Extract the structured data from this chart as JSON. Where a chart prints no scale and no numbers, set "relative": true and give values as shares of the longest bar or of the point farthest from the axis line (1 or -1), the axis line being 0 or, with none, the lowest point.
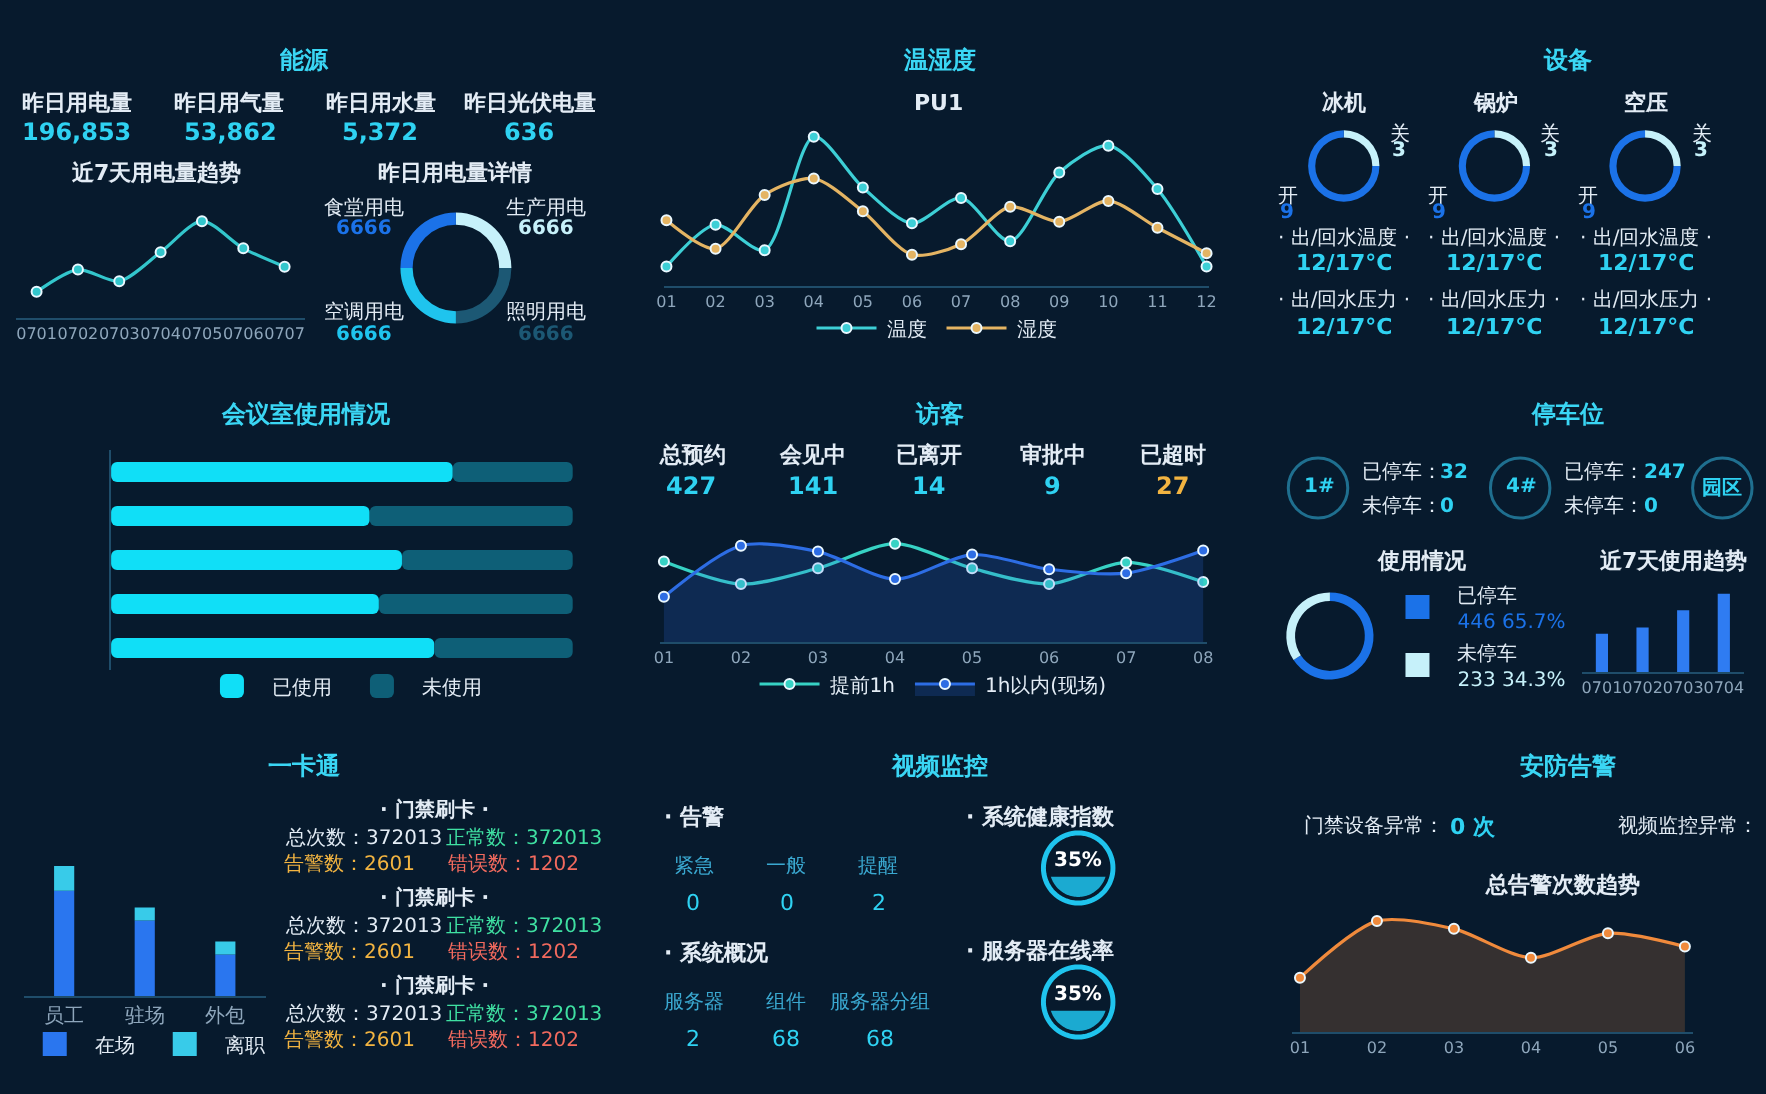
{
  "chart_data": [
    {
      "type": "other",
      "title": "能源",
      "annotations": [
        "昨日用电量",
        "196,853",
        "昨日用气量",
        "53,862",
        "昨日用水量",
        "5,372",
        "昨日光伏电量",
        "636"
      ]
    },
    {
      "type": "line",
      "title": "近7天用电量趋势",
      "categories": [
        "0701",
        "0702",
        "0703",
        "0704",
        "0705",
        "0706",
        "0707"
      ],
      "values": [
        0.27,
        0.5,
        0.38,
        0.68,
        1,
        0.72,
        0.53
      ],
      "color": "#33c6cc",
      "relative": true,
      "marker": "circle"
    },
    {
      "type": "donut",
      "title": "昨日用电量详情",
      "categories": [
        "生产用电",
        "照明用电",
        "空调用电",
        "食堂用电"
      ],
      "values": [
        6666,
        6666,
        6666,
        6666
      ],
      "colors": [
        "#c6f1fa",
        "#1c5874",
        "#1fc4ee",
        "#1b72e8"
      ],
      "data_labels": true
    },
    {
      "type": "line",
      "title": "温湿度",
      "subtitle": "PU1",
      "categories": [
        "01",
        "02",
        "03",
        "04",
        "05",
        "06",
        "07",
        "08",
        "09",
        "10",
        "11",
        "12"
      ],
      "series": [
        {
          "name": "温度",
          "color": "#3dcfd6",
          "values": [
            0.13,
            0.41,
            0.24,
            1,
            0.66,
            0.42,
            0.59,
            0.3,
            0.76,
            0.94,
            0.65,
            0.13
          ]
        },
        {
          "name": "湿度",
          "color": "#e4b463",
          "values": [
            0.44,
            0.25,
            0.61,
            0.72,
            0.5,
            0.21,
            0.28,
            0.53,
            0.43,
            0.57,
            0.39,
            0.22
          ]
        }
      ],
      "relative": true,
      "marker": "circle",
      "legend": "bottom"
    },
    {
      "type": "donut",
      "title": "设备",
      "subtitle": "冰机",
      "categories": [
        "关",
        "开"
      ],
      "values": [
        3,
        9
      ],
      "colors": [
        "#c6f1fa",
        "#1b72e8"
      ],
      "data_labels": true,
      "annotations": [
        "· 出/回水温度 ·",
        "12/17°C",
        "· 出/回水压力 ·",
        "12/17°C"
      ]
    },
    {
      "type": "donut",
      "title": "锅炉",
      "categories": [
        "关",
        "开"
      ],
      "values": [
        3,
        9
      ],
      "colors": [
        "#c6f1fa",
        "#1b72e8"
      ],
      "data_labels": true,
      "annotations": [
        "· 出/回水温度 ·",
        "12/17°C",
        "· 出/回水压力 ·",
        "12/17°C"
      ]
    },
    {
      "type": "donut",
      "title": "空压",
      "categories": [
        "关",
        "开"
      ],
      "values": [
        3,
        9
      ],
      "colors": [
        "#c6f1fa",
        "#1b72e8"
      ],
      "data_labels": true,
      "annotations": [
        "· 出/回水温度 ·",
        "12/17°C",
        "· 出/回水压力 ·",
        "12/17°C"
      ]
    },
    {
      "type": "bar",
      "title": "会议室使用情况",
      "orientation": "horizontal",
      "stacked": true,
      "relative": true,
      "categories": [
        null,
        null,
        null,
        null,
        null
      ],
      "series": [
        {
          "name": "已使用",
          "color": "#10dff7",
          "values": [
            0.74,
            0.56,
            0.63,
            0.58,
            0.7
          ]
        },
        {
          "name": "未使用",
          "color": "#0e5f77",
          "values": [
            0.26,
            0.44,
            0.37,
            0.42,
            0.3
          ]
        }
      ],
      "legend": "bottom"
    },
    {
      "type": "other",
      "title": "访客",
      "annotations": [
        "总预约",
        "427",
        "会见中",
        "141",
        "已离开",
        "14",
        "审批中",
        "9",
        "已超时",
        "27"
      ]
    },
    {
      "type": "line",
      "categories": [
        "01",
        "02",
        "03",
        "04",
        "05",
        "06",
        "07",
        "08"
      ],
      "series": [
        {
          "name": "提前1h",
          "color": "#37d2c4",
          "values": [
            0.82,
            0.59,
            0.75,
            1,
            0.75,
            0.59,
            0.81,
            0.61
          ]
        },
        {
          "name": "1h以内(现场)",
          "type": "area",
          "color": "#2d6de4",
          "values": [
            0.46,
            0.98,
            0.92,
            0.64,
            0.89,
            0.74,
            0.7,
            0.93
          ]
        }
      ],
      "relative": true,
      "marker": "circle",
      "legend": "bottom"
    },
    {
      "type": "other",
      "title": "停车位",
      "annotations": [
        "1#",
        "已停车：",
        "32",
        "未停车：",
        "0",
        "4#",
        "已停车：",
        "247",
        "未停车：",
        "0",
        "园区"
      ]
    },
    {
      "type": "donut",
      "title": "使用情况",
      "categories": [
        "已停车",
        "未停车"
      ],
      "values": [
        446,
        233
      ],
      "value_labels": [
        "446 65.7%",
        "233 34.3%"
      ],
      "colors": [
        "#1b72e8",
        "#c6f1fa"
      ],
      "legend": "right"
    },
    {
      "type": "bar",
      "title": "近7天使用趋势",
      "categories": [
        "0701",
        "0702",
        "0703",
        "0704"
      ],
      "values": [
        0.49,
        0.57,
        0.79,
        1
      ],
      "color": "#2f7cf2",
      "relative": true
    },
    {
      "type": "bar",
      "stacked": true,
      "relative": true,
      "categories": [
        "员工",
        "驻场",
        "外包"
      ],
      "series": [
        {
          "name": "在场",
          "color": "#2a76ef",
          "values": [
            0.81,
            0.58,
            0.32
          ]
        },
        {
          "name": "离职",
          "color": "#38cbe9",
          "values": [
            0.19,
            0.1,
            0.1
          ]
        }
      ],
      "legend": "bottom"
    },
    {
      "type": "other",
      "title": "一卡通",
      "annotations": [
        "· 门禁刷卡 ·",
        "总次数：372013",
        "正常数：372013",
        "告警数：2601",
        "错误数：1202",
        "· 门禁刷卡 ·",
        "总次数：372013",
        "正常数：372013",
        "告警数：2601",
        "错误数：1202",
        "· 门禁刷卡 ·",
        "总次数：372013",
        "正常数：372013",
        "告警数：2601",
        "错误数：1202"
      ]
    },
    {
      "type": "other",
      "title": "视频监控",
      "annotations": [
        "· 告警",
        "紧急",
        "0",
        "一般",
        "0",
        "提醒",
        "2",
        "· 系统概况",
        "服务器",
        "2",
        "组件",
        "68",
        "服务器分组",
        "68"
      ]
    },
    {
      "type": "other",
      "title": "· 系统健康指数",
      "values": [
        35
      ],
      "value_labels": [
        "35%"
      ],
      "color": "#1fc4ee"
    },
    {
      "type": "other",
      "title": "· 服务器在线率",
      "values": [
        35
      ],
      "value_labels": [
        "35%"
      ],
      "color": "#1fc4ee"
    },
    {
      "type": "other",
      "title": "安防告警",
      "annotations": [
        "门禁设备异常：",
        "0 次",
        "视频监控异常："
      ]
    },
    {
      "type": "area",
      "title": "总告警次数趋势",
      "categories": [
        "01",
        "02",
        "03",
        "04",
        "05",
        "06"
      ],
      "values": [
        0.49,
        1,
        0.93,
        0.67,
        0.89,
        0.77
      ],
      "color": "#f08a3c",
      "relative": true,
      "marker": "circle"
    }
  ]
}
